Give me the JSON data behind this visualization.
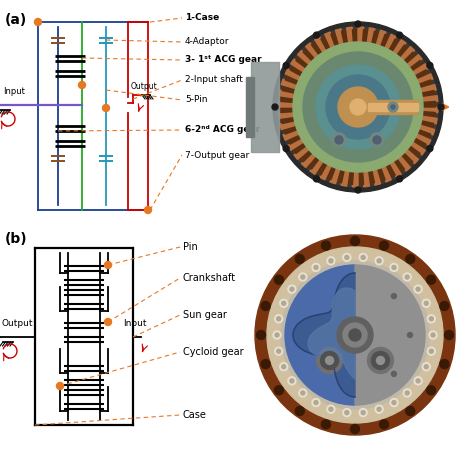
{
  "fig_width": 4.74,
  "fig_height": 4.5,
  "dpi": 100,
  "background_color": "#ffffff",
  "label_a": "(a)",
  "label_b": "(b)",
  "labels_a": [
    "1-Case",
    "4-Adaptor",
    "3- 1st ACG gear",
    "2-Input shaft",
    "5-Pin",
    "6-2nd ACG gear",
    "7-Output gear"
  ],
  "labels_b": [
    "Pin",
    "Crankshaft",
    "Sun gear",
    "Cycloid gear",
    "Case"
  ],
  "text_input_a": "Input",
  "text_output_a": "Output",
  "text_output_b": "Output",
  "text_input_b": "Input",
  "orange_dot_color": "#E87722",
  "line_blue": "#1a3d8f",
  "line_red": "#cc0000",
  "line_green": "#22aa22",
  "line_purple": "#7755cc",
  "line_teal": "#2299bb",
  "line_brown": "#8B5020",
  "dashed_box_color": "#E87722",
  "schematic_line_color": "#000000"
}
